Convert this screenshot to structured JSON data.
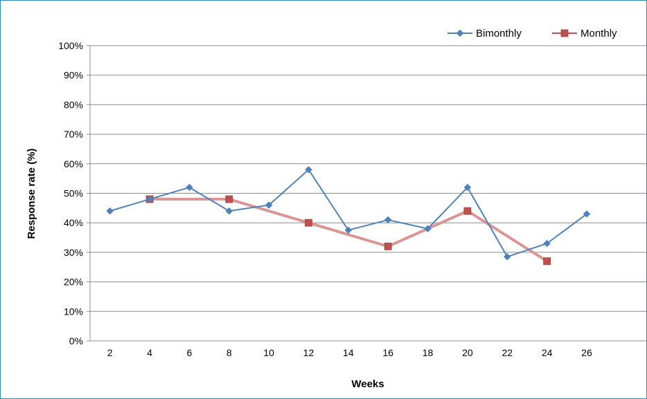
{
  "chart_data": {
    "type": "line",
    "title": "",
    "xlabel": "Weeks",
    "ylabel": "Response rate (%)",
    "x_ticks": [
      "2",
      "4",
      "6",
      "8",
      "10",
      "12",
      "14",
      "16",
      "18",
      "20",
      "22",
      "24",
      "26"
    ],
    "y_ticks": [
      "0%",
      "10%",
      "20%",
      "30%",
      "40%",
      "50%",
      "60%",
      "70%",
      "80%",
      "90%",
      "100%"
    ],
    "ylim": [
      0,
      100
    ],
    "xlim": [
      1,
      29
    ],
    "grid": "horizontal",
    "legend_position": "top-right",
    "series": [
      {
        "name": "Bimonthly",
        "color": "#4f81bd",
        "marker": "diamond",
        "x": [
          2,
          4,
          6,
          8,
          10,
          12,
          14,
          16,
          18,
          20,
          22,
          24,
          26
        ],
        "y": [
          44,
          48,
          52,
          44,
          46,
          58,
          37.5,
          41,
          38,
          52,
          28.5,
          33,
          43
        ]
      },
      {
        "name": "Monthly",
        "color": "#c0504d",
        "line_color": "#d99694",
        "marker": "square",
        "x": [
          4,
          8,
          12,
          16,
          20,
          24
        ],
        "y": [
          48,
          48,
          40,
          32,
          44,
          27
        ]
      }
    ]
  }
}
